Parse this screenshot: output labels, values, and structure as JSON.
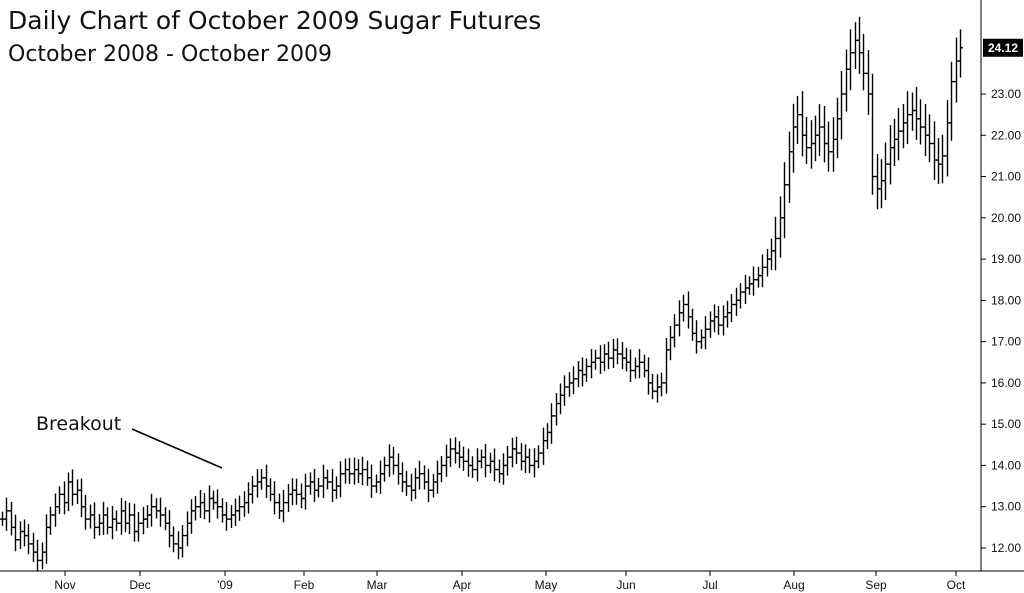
{
  "chart_data": {
    "type": "bar",
    "style": "ohlc",
    "title": "Daily Chart of October 2009 Sugar Futures",
    "subtitle": "October 2008 - October 2009",
    "annotation": "Breakout",
    "last_price": "24.12",
    "x_tick_labels": [
      "Nov",
      "Dec",
      "'09",
      "Feb",
      "Mar",
      "Apr",
      "May",
      "Jun",
      "Jul",
      "Aug",
      "Sep",
      "Oct"
    ],
    "y_tick_labels": [
      "12.00",
      "13.00",
      "14.00",
      "15.00",
      "16.00",
      "17.00",
      "18.00",
      "19.00",
      "20.00",
      "21.00",
      "22.00",
      "23.00"
    ],
    "y_ticks": [
      12,
      13,
      14,
      15,
      16,
      17,
      18,
      19,
      20,
      21,
      22,
      23
    ],
    "ylim": [
      11.4,
      24.6
    ],
    "grid": false,
    "colors": {
      "bars": "#000000",
      "last_price_box": "#000000",
      "axis": "#000000"
    },
    "closes": [
      12.7,
      12.9,
      12.5,
      12.2,
      12.4,
      12.3,
      12.1,
      11.9,
      11.7,
      11.9,
      12.5,
      12.8,
      13.0,
      13.3,
      13.1,
      13.6,
      13.3,
      13.4,
      13.0,
      12.7,
      12.8,
      12.5,
      12.6,
      12.8,
      12.5,
      12.7,
      12.6,
      12.9,
      12.6,
      12.8,
      12.4,
      12.6,
      12.7,
      12.8,
      13.0,
      12.9,
      12.8,
      12.6,
      12.3,
      12.1,
      12.0,
      12.3,
      12.6,
      12.9,
      13.0,
      13.1,
      12.9,
      13.2,
      13.1,
      13.0,
      12.8,
      12.7,
      12.8,
      12.9,
      13.0,
      13.1,
      13.3,
      13.5,
      13.6,
      13.7,
      13.5,
      13.3,
      13.1,
      12.9,
      13.1,
      13.3,
      13.4,
      13.3,
      13.2,
      13.5,
      13.6,
      13.4,
      13.5,
      13.7,
      13.6,
      13.4,
      13.5,
      13.8,
      13.9,
      13.8,
      13.9,
      13.8,
      13.9,
      13.7,
      13.5,
      13.6,
      13.8,
      14.0,
      14.2,
      14.0,
      13.8,
      13.6,
      13.5,
      13.4,
      13.7,
      13.8,
      13.6,
      13.4,
      13.6,
      13.8,
      14.0,
      14.2,
      14.4,
      14.3,
      14.2,
      14.1,
      14.0,
      13.9,
      14.1,
      14.2,
      14.0,
      14.1,
      13.9,
      13.8,
      14.0,
      14.2,
      14.4,
      14.3,
      14.1,
      14.2,
      14.0,
      14.1,
      14.3,
      14.6,
      14.8,
      15.2,
      15.5,
      15.7,
      15.9,
      16.0,
      16.1,
      16.3,
      16.2,
      16.4,
      16.5,
      16.6,
      16.5,
      16.7,
      16.6,
      16.8,
      16.7,
      16.6,
      16.5,
      16.3,
      16.4,
      16.5,
      16.3,
      16.0,
      15.8,
      15.9,
      16.0,
      16.8,
      17.1,
      17.4,
      17.7,
      17.9,
      17.6,
      17.2,
      17.0,
      17.1,
      17.3,
      17.5,
      17.6,
      17.4,
      17.6,
      17.7,
      17.9,
      18.0,
      18.2,
      18.3,
      18.4,
      18.5,
      18.6,
      18.8,
      19.0,
      19.2,
      19.5,
      20.0,
      20.8,
      21.6,
      22.2,
      22.5,
      22.0,
      21.7,
      21.8,
      22.0,
      22.2,
      21.8,
      21.6,
      21.9,
      22.4,
      23.0,
      23.6,
      24.0,
      24.3,
      24.0,
      23.5,
      23.0,
      21.0,
      20.7,
      20.9,
      21.3,
      21.7,
      21.9,
      22.1,
      22.3,
      22.5,
      22.6,
      22.4,
      22.2,
      22.0,
      21.8,
      21.4,
      21.3,
      21.5,
      22.3,
      23.3,
      23.8,
      24.12
    ],
    "breakout_index": 57
  }
}
